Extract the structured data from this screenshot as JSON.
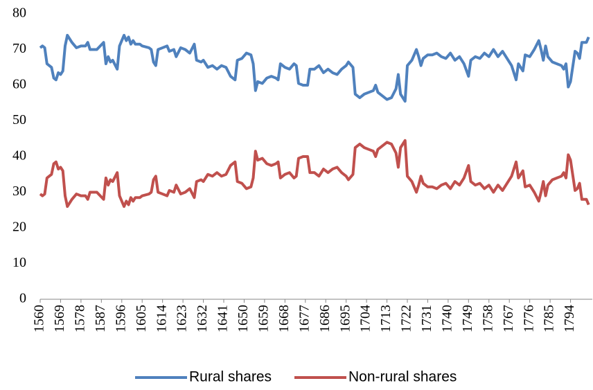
{
  "chart_data": {
    "type": "line",
    "x": [
      1560,
      1561,
      1562,
      1563,
      1565,
      1566,
      1567,
      1568,
      1569,
      1570,
      1571,
      1572,
      1574,
      1576,
      1578,
      1580,
      1581,
      1582,
      1585,
      1588,
      1589,
      1590,
      1591,
      1592,
      1594,
      1595,
      1597,
      1598,
      1599,
      1600,
      1601,
      1602,
      1604,
      1605,
      1608,
      1609,
      1610,
      1611,
      1612,
      1614,
      1616,
      1617,
      1619,
      1620,
      1622,
      1624,
      1626,
      1628,
      1629,
      1631,
      1632,
      1634,
      1636,
      1638,
      1640,
      1642,
      1644,
      1646,
      1647,
      1649,
      1651,
      1653,
      1654,
      1655,
      1656,
      1658,
      1660,
      1662,
      1664,
      1665,
      1666,
      1668,
      1670,
      1672,
      1673,
      1674,
      1676,
      1678,
      1679,
      1681,
      1683,
      1685,
      1687,
      1689,
      1691,
      1693,
      1695,
      1696,
      1698,
      1699,
      1701,
      1703,
      1705,
      1707,
      1708,
      1709,
      1711,
      1713,
      1715,
      1717,
      1718,
      1719,
      1721,
      1722,
      1724,
      1726,
      1727,
      1728,
      1729,
      1731,
      1733,
      1735,
      1737,
      1739,
      1741,
      1743,
      1745,
      1747,
      1749,
      1750,
      1752,
      1754,
      1756,
      1758,
      1760,
      1762,
      1764,
      1768,
      1770,
      1771,
      1773,
      1774,
      1776,
      1778,
      1780,
      1781,
      1782,
      1783,
      1784,
      1786,
      1788,
      1790,
      1791,
      1792,
      1793,
      1794,
      1796,
      1797,
      1798,
      1799,
      1801,
      1802
    ],
    "series": [
      {
        "name": "Rural shares",
        "color": "#4f81bd",
        "values": [
          70.5,
          71,
          70.5,
          66,
          65,
          62,
          61.5,
          63.5,
          63,
          64,
          71,
          74,
          72,
          70.5,
          71,
          71,
          72,
          70,
          70,
          72,
          66,
          68,
          66.5,
          67,
          64.5,
          71,
          74,
          72.5,
          73.5,
          71.5,
          72.5,
          71.5,
          71.5,
          71,
          70.5,
          70,
          66.5,
          65.5,
          70,
          70.5,
          71,
          69.5,
          70,
          68,
          70.5,
          70,
          69,
          71.5,
          67,
          66.5,
          67,
          65,
          65.5,
          64.5,
          65.5,
          65,
          62.5,
          61.5,
          67,
          67.5,
          69,
          68.5,
          66,
          58.5,
          61,
          60.5,
          62,
          62.5,
          62,
          61.5,
          66,
          65,
          64.5,
          66,
          65.5,
          60.5,
          60,
          60,
          64.5,
          64.5,
          65.5,
          63.5,
          64.5,
          63.5,
          63,
          64.5,
          65.5,
          66.5,
          65,
          57.5,
          56.5,
          57.5,
          58,
          58.5,
          60,
          58,
          57,
          56,
          56.5,
          59,
          63,
          57.5,
          55.5,
          65.5,
          67,
          70,
          68,
          65.5,
          67.5,
          68.5,
          68.5,
          69,
          68,
          67.5,
          69,
          67,
          68,
          66,
          62.5,
          67,
          68,
          67.5,
          69,
          68,
          70,
          68,
          69.5,
          65.5,
          61.5,
          66,
          64,
          68.5,
          68,
          70,
          72.5,
          70,
          67,
          71,
          68,
          66.5,
          66,
          65.5,
          64.5,
          66,
          59.5,
          61,
          69.5,
          69,
          67.5,
          72,
          72,
          73.5
        ]
      },
      {
        "name": "Non-rural shares",
        "color": "#c0504d",
        "values": [
          29.5,
          29,
          29.5,
          34,
          35,
          38,
          38.5,
          36.5,
          37,
          36,
          29,
          26,
          28,
          29.5,
          29,
          29,
          28,
          30,
          30,
          28,
          34,
          32,
          33.5,
          33,
          35.5,
          29,
          26,
          27.5,
          26.5,
          28.5,
          27.5,
          28.5,
          28.5,
          29,
          29.5,
          30,
          33.5,
          34.5,
          30,
          29.5,
          29,
          30.5,
          30,
          32,
          29.5,
          30,
          31,
          28.5,
          33,
          33.5,
          33,
          35,
          34.5,
          35.5,
          34.5,
          35,
          37.5,
          38.5,
          33,
          32.5,
          31,
          31.5,
          34,
          41.5,
          39,
          39.5,
          38,
          37.5,
          38,
          38.5,
          34,
          35,
          35.5,
          34,
          34.5,
          39.5,
          40,
          40,
          35.5,
          35.5,
          34.5,
          36.5,
          35.5,
          36.5,
          37,
          35.5,
          34.5,
          33.5,
          35,
          42.5,
          43.5,
          42.5,
          42,
          41.5,
          40,
          42,
          43,
          44,
          43.5,
          41,
          37,
          42.5,
          44.5,
          34.5,
          33,
          30,
          32,
          34.5,
          32.5,
          31.5,
          31.5,
          31,
          32,
          32.5,
          31,
          33,
          32,
          34,
          37.5,
          33,
          32,
          32.5,
          31,
          32,
          30,
          32,
          30.5,
          34.5,
          38.5,
          34,
          36,
          31.5,
          32,
          30,
          27.5,
          30,
          33,
          29,
          32,
          33.5,
          34,
          34.5,
          35.5,
          34,
          40.5,
          39,
          30.5,
          31,
          32.5,
          28,
          28,
          26.5
        ]
      }
    ],
    "xlim": [
      1560,
      1803
    ],
    "xticks": [
      1560,
      1569,
      1578,
      1587,
      1596,
      1605,
      1614,
      1623,
      1632,
      1641,
      1650,
      1659,
      1668,
      1677,
      1686,
      1695,
      1704,
      1713,
      1722,
      1731,
      1740,
      1749,
      1758,
      1767,
      1776,
      1785,
      1794
    ],
    "ylim": [
      0,
      80
    ],
    "yticks": [
      0,
      10,
      20,
      30,
      40,
      50,
      60,
      70,
      80
    ],
    "grid": false,
    "legend": "bottom"
  }
}
